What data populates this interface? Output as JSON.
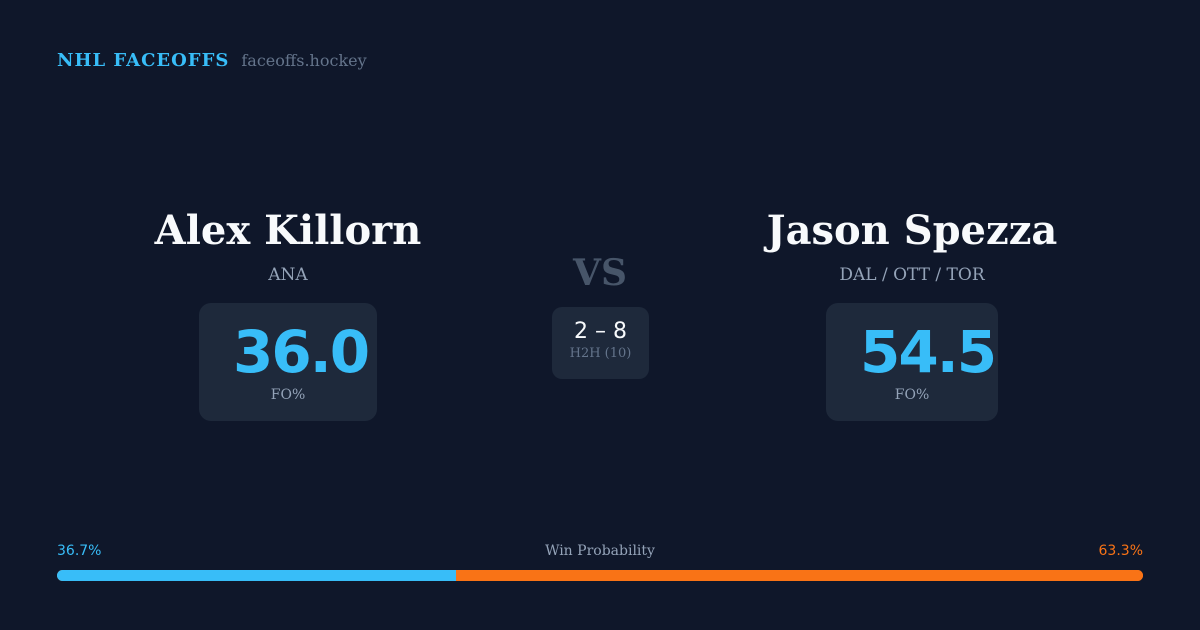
{
  "brand": {
    "title": "NHL FACEOFFS",
    "url": "faceoffs.hockey"
  },
  "left": {
    "name": "Alex Killorn",
    "team": "ANA",
    "fo_pct": "36.0",
    "fo_label": "FO%"
  },
  "right": {
    "name": "Jason Spezza",
    "team": "DAL / OTT / TOR",
    "fo_pct": "54.5",
    "fo_label": "FO%"
  },
  "vs": "VS",
  "h2h": {
    "score": "2 – 8",
    "label": "H2H (10)"
  },
  "probability": {
    "label": "Win Probability",
    "left": "36.7%",
    "right": "63.3%",
    "left_value": 36.7,
    "right_value": 63.3
  },
  "colors": {
    "left": "#38bdf8",
    "right": "#f97316",
    "background": "#0f172a"
  }
}
